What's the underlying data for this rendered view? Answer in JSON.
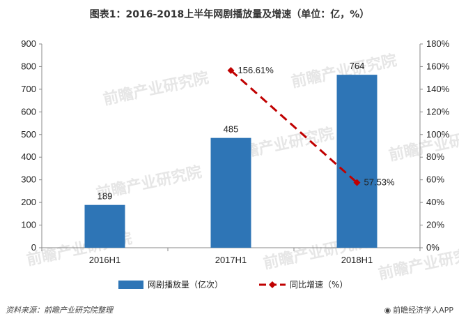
{
  "title": "图表1：2016-2018上半年网剧播放量及增速（单位：亿，%）",
  "chart_data": {
    "type": "bar",
    "categories": [
      "2016H1",
      "2017H1",
      "2018H1"
    ],
    "series": [
      {
        "name": "网剧播放量（亿次）",
        "type": "bar",
        "axis": "left",
        "values": [
          189,
          485,
          764
        ],
        "labels": [
          "189",
          "485",
          "764"
        ],
        "color": "#2e75b6"
      },
      {
        "name": "同比增速（%）",
        "type": "line",
        "axis": "right",
        "values": [
          null,
          156.61,
          57.53
        ],
        "labels": [
          "",
          "156.61%",
          "57.53%"
        ],
        "color": "#c00000",
        "style": "dashed"
      }
    ],
    "y_left": {
      "lim": [
        0,
        900
      ],
      "ticks": [
        0,
        100,
        200,
        300,
        400,
        500,
        600,
        700,
        800,
        900
      ],
      "tick_labels": [
        "0",
        "100",
        "200",
        "300",
        "400",
        "500",
        "600",
        "700",
        "800",
        "900"
      ]
    },
    "y_right": {
      "lim": [
        0,
        180
      ],
      "ticks": [
        0,
        20,
        40,
        60,
        80,
        100,
        120,
        140,
        160,
        180
      ],
      "tick_labels": [
        "0%",
        "20%",
        "40%",
        "60%",
        "80%",
        "100%",
        "120%",
        "140%",
        "160%",
        "180%"
      ]
    },
    "grid": false,
    "legend_position": "bottom"
  },
  "footer": {
    "source": "资料来源：前瞻产业研究院整理",
    "brand": "前瞻经济学人APP",
    "brand_icon": "circle-logo-icon"
  },
  "watermark": "前瞻产业研究院"
}
